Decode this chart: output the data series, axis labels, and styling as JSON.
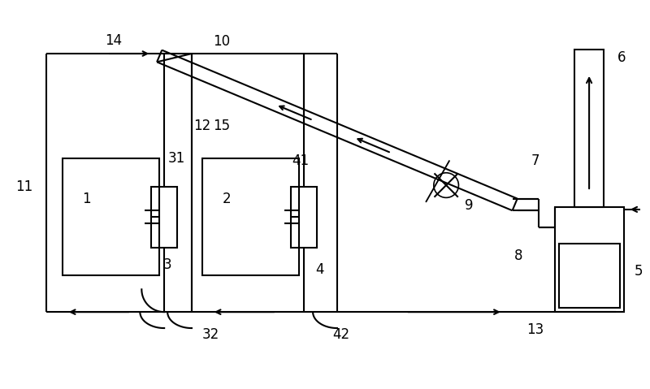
{
  "bg_color": "#ffffff",
  "line_color": "#000000",
  "lw": 1.5,
  "fig_width": 8.0,
  "fig_height": 4.79,
  "dpi": 100
}
